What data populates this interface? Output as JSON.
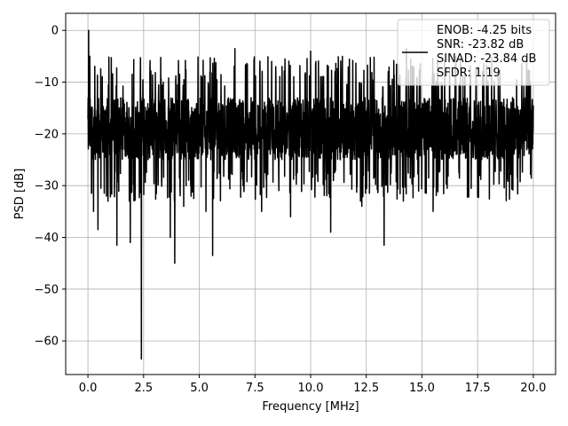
{
  "chart_data": {
    "type": "line",
    "title": "",
    "xlabel": "Frequency [MHz]",
    "ylabel": "PSD [dB]",
    "xlim": [
      -1.0,
      21.0
    ],
    "ylim": [
      -66.5,
      3.3
    ],
    "x_ticks": [
      0.0,
      2.5,
      5.0,
      7.5,
      10.0,
      12.5,
      15.0,
      17.5,
      20.0
    ],
    "x_tick_labels": [
      "0.0",
      "2.5",
      "5.0",
      "7.5",
      "10.0",
      "12.5",
      "15.0",
      "17.5",
      "20.0"
    ],
    "y_ticks": [
      0,
      -10,
      -20,
      -30,
      -40,
      -50,
      -60
    ],
    "y_tick_labels": [
      "0",
      "−10",
      "−20",
      "−30",
      "−40",
      "−50",
      "−60"
    ],
    "grid": true,
    "legend_position": "upper-right",
    "legend": {
      "lines": [
        "ENOB: -4.25 bits",
        "SNR: -23.82 dB",
        "SINAD: -23.84 dB",
        "SFDR: 1.19"
      ]
    },
    "line_color": "#000000",
    "series": [
      {
        "x_start": 0.0,
        "x_end": 20.0,
        "noise_floor_db": -19,
        "noise_spread_db": 6,
        "upper_envelope_db": -5,
        "lower_envelope_db": -33,
        "dips": [
          {
            "x": 0.25,
            "y": -35
          },
          {
            "x": 0.45,
            "y": -38.5
          },
          {
            "x": 0.9,
            "y": -33
          },
          {
            "x": 1.3,
            "y": -41.5
          },
          {
            "x": 1.9,
            "y": -41
          },
          {
            "x": 2.4,
            "y": -63.5
          },
          {
            "x": 3.7,
            "y": -40
          },
          {
            "x": 3.9,
            "y": -45
          },
          {
            "x": 4.3,
            "y": -34
          },
          {
            "x": 5.3,
            "y": -35
          },
          {
            "x": 5.6,
            "y": -43.5
          },
          {
            "x": 7.8,
            "y": -35
          },
          {
            "x": 9.1,
            "y": -36
          },
          {
            "x": 10.9,
            "y": -39
          },
          {
            "x": 12.3,
            "y": -34
          },
          {
            "x": 13.3,
            "y": -41.5
          },
          {
            "x": 15.5,
            "y": -35
          }
        ],
        "peaks": [
          {
            "x": 0.03,
            "y": 0
          },
          {
            "x": 0.08,
            "y": -5
          },
          {
            "x": 6.6,
            "y": -3.5
          },
          {
            "x": 10.0,
            "y": -4
          },
          {
            "x": 14.3,
            "y": -3.5
          }
        ]
      }
    ]
  }
}
